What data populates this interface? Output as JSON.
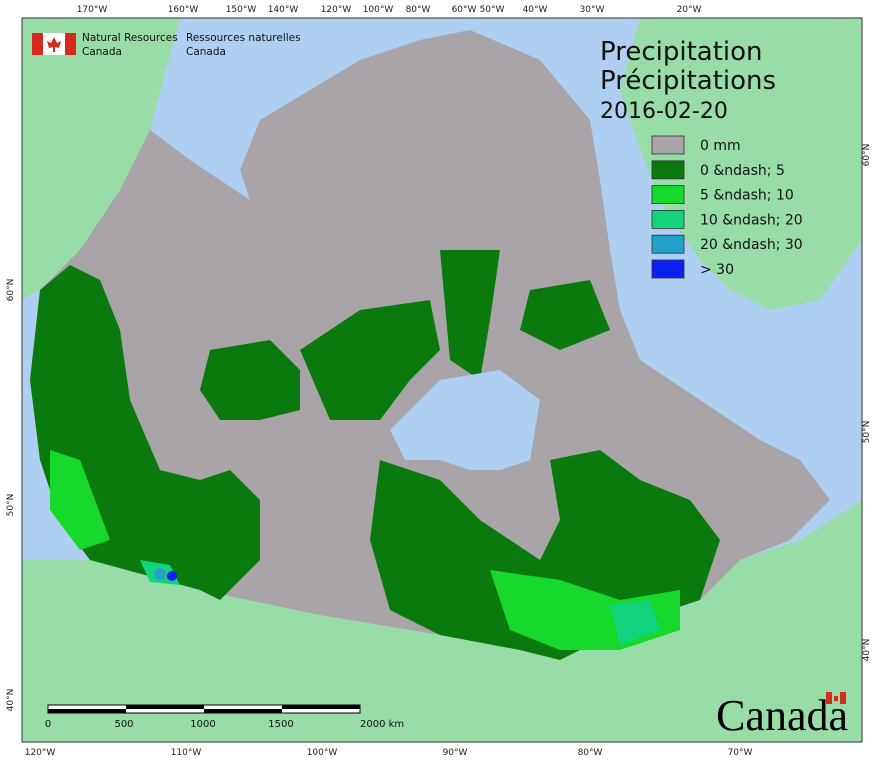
{
  "header": {
    "agency_en": [
      "Natural Resources",
      "Canada"
    ],
    "agency_fr": [
      "Ressources naturelles",
      "Canada"
    ]
  },
  "title": {
    "en": "Precipitation",
    "fr": "Précipitations",
    "date": "2016-02-20"
  },
  "legend": [
    {
      "label": "0 mm",
      "color": "#a8a4a8"
    },
    {
      "label": "0 &ndash; 5",
      "color": "#0b7a0e"
    },
    {
      "label": "5 &ndash; 10",
      "color": "#16d92c"
    },
    {
      "label": "10 &ndash; 20",
      "color": "#12d47c"
    },
    {
      "label": "20 &ndash; 30",
      "color": "#23a2c9"
    },
    {
      "label": "> 30",
      "color": "#0a1ff2"
    }
  ],
  "longitude_labels_top": [
    "170°W",
    "160°W",
    "150°W",
    "140°W",
    "120°W",
    "100°W",
    "80°W",
    "60°W",
    "50°W",
    "40°W",
    "30°W",
    "20°W"
  ],
  "longitude_labels_bottom": [
    "120°W",
    "110°W",
    "100°W",
    "90°W",
    "80°W",
    "70°W"
  ],
  "latitude_labels_left": [
    "60°N",
    "50°N",
    "40°N"
  ],
  "latitude_labels_right": [
    "60°N",
    "50°N",
    "40°N"
  ],
  "scale_bar": {
    "labels": [
      "0",
      "500",
      "1000",
      "1500",
      "2000 km"
    ]
  },
  "wordmark": "Canada"
}
